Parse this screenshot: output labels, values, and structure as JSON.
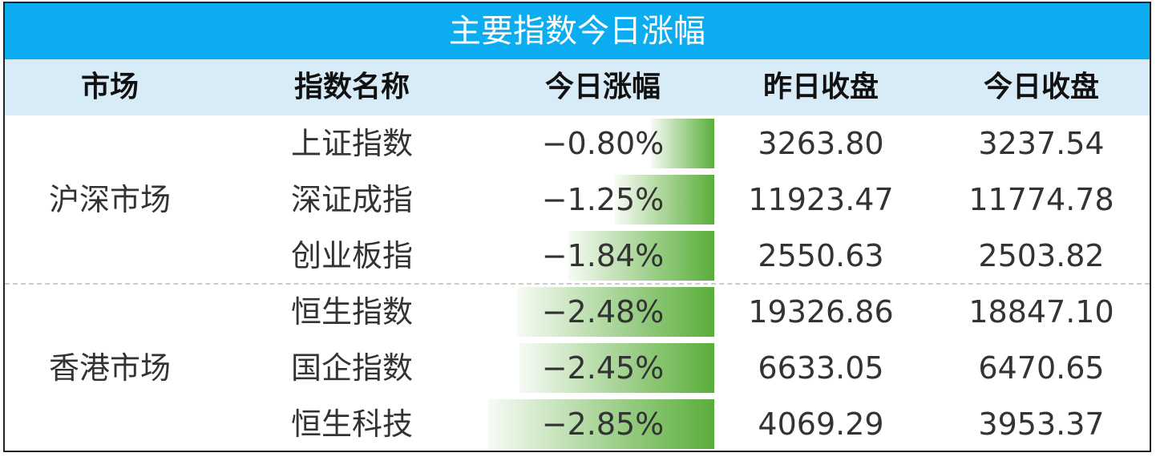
{
  "header": {
    "title": "主要指数今日涨幅",
    "columns": [
      "市场",
      "指数名称",
      "今日涨幅",
      "昨日收盘",
      "今日收盘"
    ]
  },
  "table": {
    "groups": [
      {
        "market": "沪深市场",
        "rows": [
          {
            "name": "上证指数",
            "change": {
              "value": -0.8,
              "label": "−0.80%"
            },
            "prev_close": "3263.80",
            "close": "3237.54"
          },
          {
            "name": "深证成指",
            "change": {
              "value": -1.25,
              "label": "−1.25%"
            },
            "prev_close": "11923.47",
            "close": "11774.78"
          },
          {
            "name": "创业板指",
            "change": {
              "value": -1.84,
              "label": "−1.84%"
            },
            "prev_close": "2550.63",
            "close": "2503.82"
          }
        ]
      },
      {
        "market": "香港市场",
        "rows": [
          {
            "name": "恒生指数",
            "change": {
              "value": -2.48,
              "label": "−2.48%"
            },
            "prev_close": "19326.86",
            "close": "18847.10"
          },
          {
            "name": "国企指数",
            "change": {
              "value": -2.45,
              "label": "−2.45%"
            },
            "prev_close": "6633.05",
            "close": "6470.65"
          },
          {
            "name": "恒生科技",
            "change": {
              "value": -2.85,
              "label": "−2.85%"
            },
            "prev_close": "4069.29",
            "close": "3953.37"
          }
        ]
      }
    ]
  }
}
